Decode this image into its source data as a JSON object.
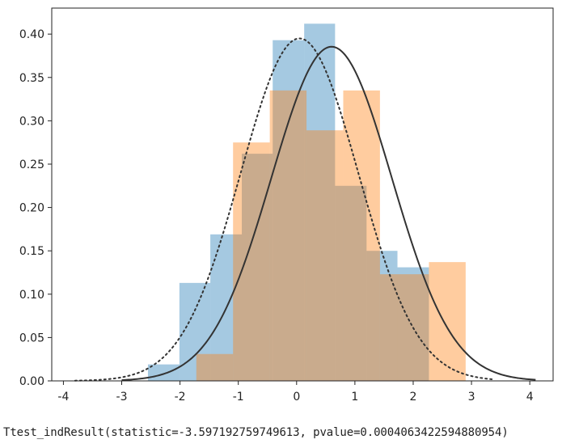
{
  "output_text": "Ttest_indResult(statistic=-3.597192759749613, pvalue=0.0004063422594880954)",
  "chart_data": {
    "type": "histogram",
    "xlim": [
      -4.2,
      4.4
    ],
    "ylim": [
      0,
      0.43
    ],
    "x_ticks": [
      -4,
      -3,
      -2,
      -1,
      0,
      1,
      2,
      3,
      4
    ],
    "x_tick_labels": [
      "-4",
      "-3",
      "-2",
      "-1",
      "0",
      "1",
      "2",
      "3",
      "4"
    ],
    "y_ticks": [
      0.0,
      0.05,
      0.1,
      0.15,
      0.2,
      0.25,
      0.3,
      0.35,
      0.4
    ],
    "y_tick_labels": [
      "0.00",
      "0.05",
      "0.10",
      "0.15",
      "0.20",
      "0.25",
      "0.30",
      "0.35",
      "0.40"
    ],
    "grid": false,
    "histograms": [
      {
        "color": "#1f77b4",
        "opacity": 0.4,
        "edges": [
          -2.55,
          -2.01,
          -1.48,
          -0.94,
          -0.41,
          0.13,
          0.66,
          1.2,
          1.73,
          2.27
        ],
        "densities": [
          0.019,
          0.113,
          0.169,
          0.262,
          0.393,
          0.412,
          0.225,
          0.15,
          0.131
        ]
      },
      {
        "color": "#ff7f0e",
        "opacity": 0.4,
        "edges": [
          -1.72,
          -1.09,
          -0.46,
          0.17,
          0.8,
          1.43,
          2.27,
          2.9
        ],
        "densities": [
          0.031,
          0.275,
          0.335,
          0.289,
          0.335,
          0.123,
          0.137
        ]
      }
    ],
    "curves": [
      {
        "style": "dotted",
        "color": "#333333",
        "mean": 0.05,
        "sd": 1.01,
        "x_range": [
          -3.8,
          3.4
        ]
      },
      {
        "style": "solid",
        "color": "#333333",
        "mean": 0.6,
        "sd": 1.035,
        "x_range": [
          -3.0,
          4.1
        ]
      }
    ]
  }
}
